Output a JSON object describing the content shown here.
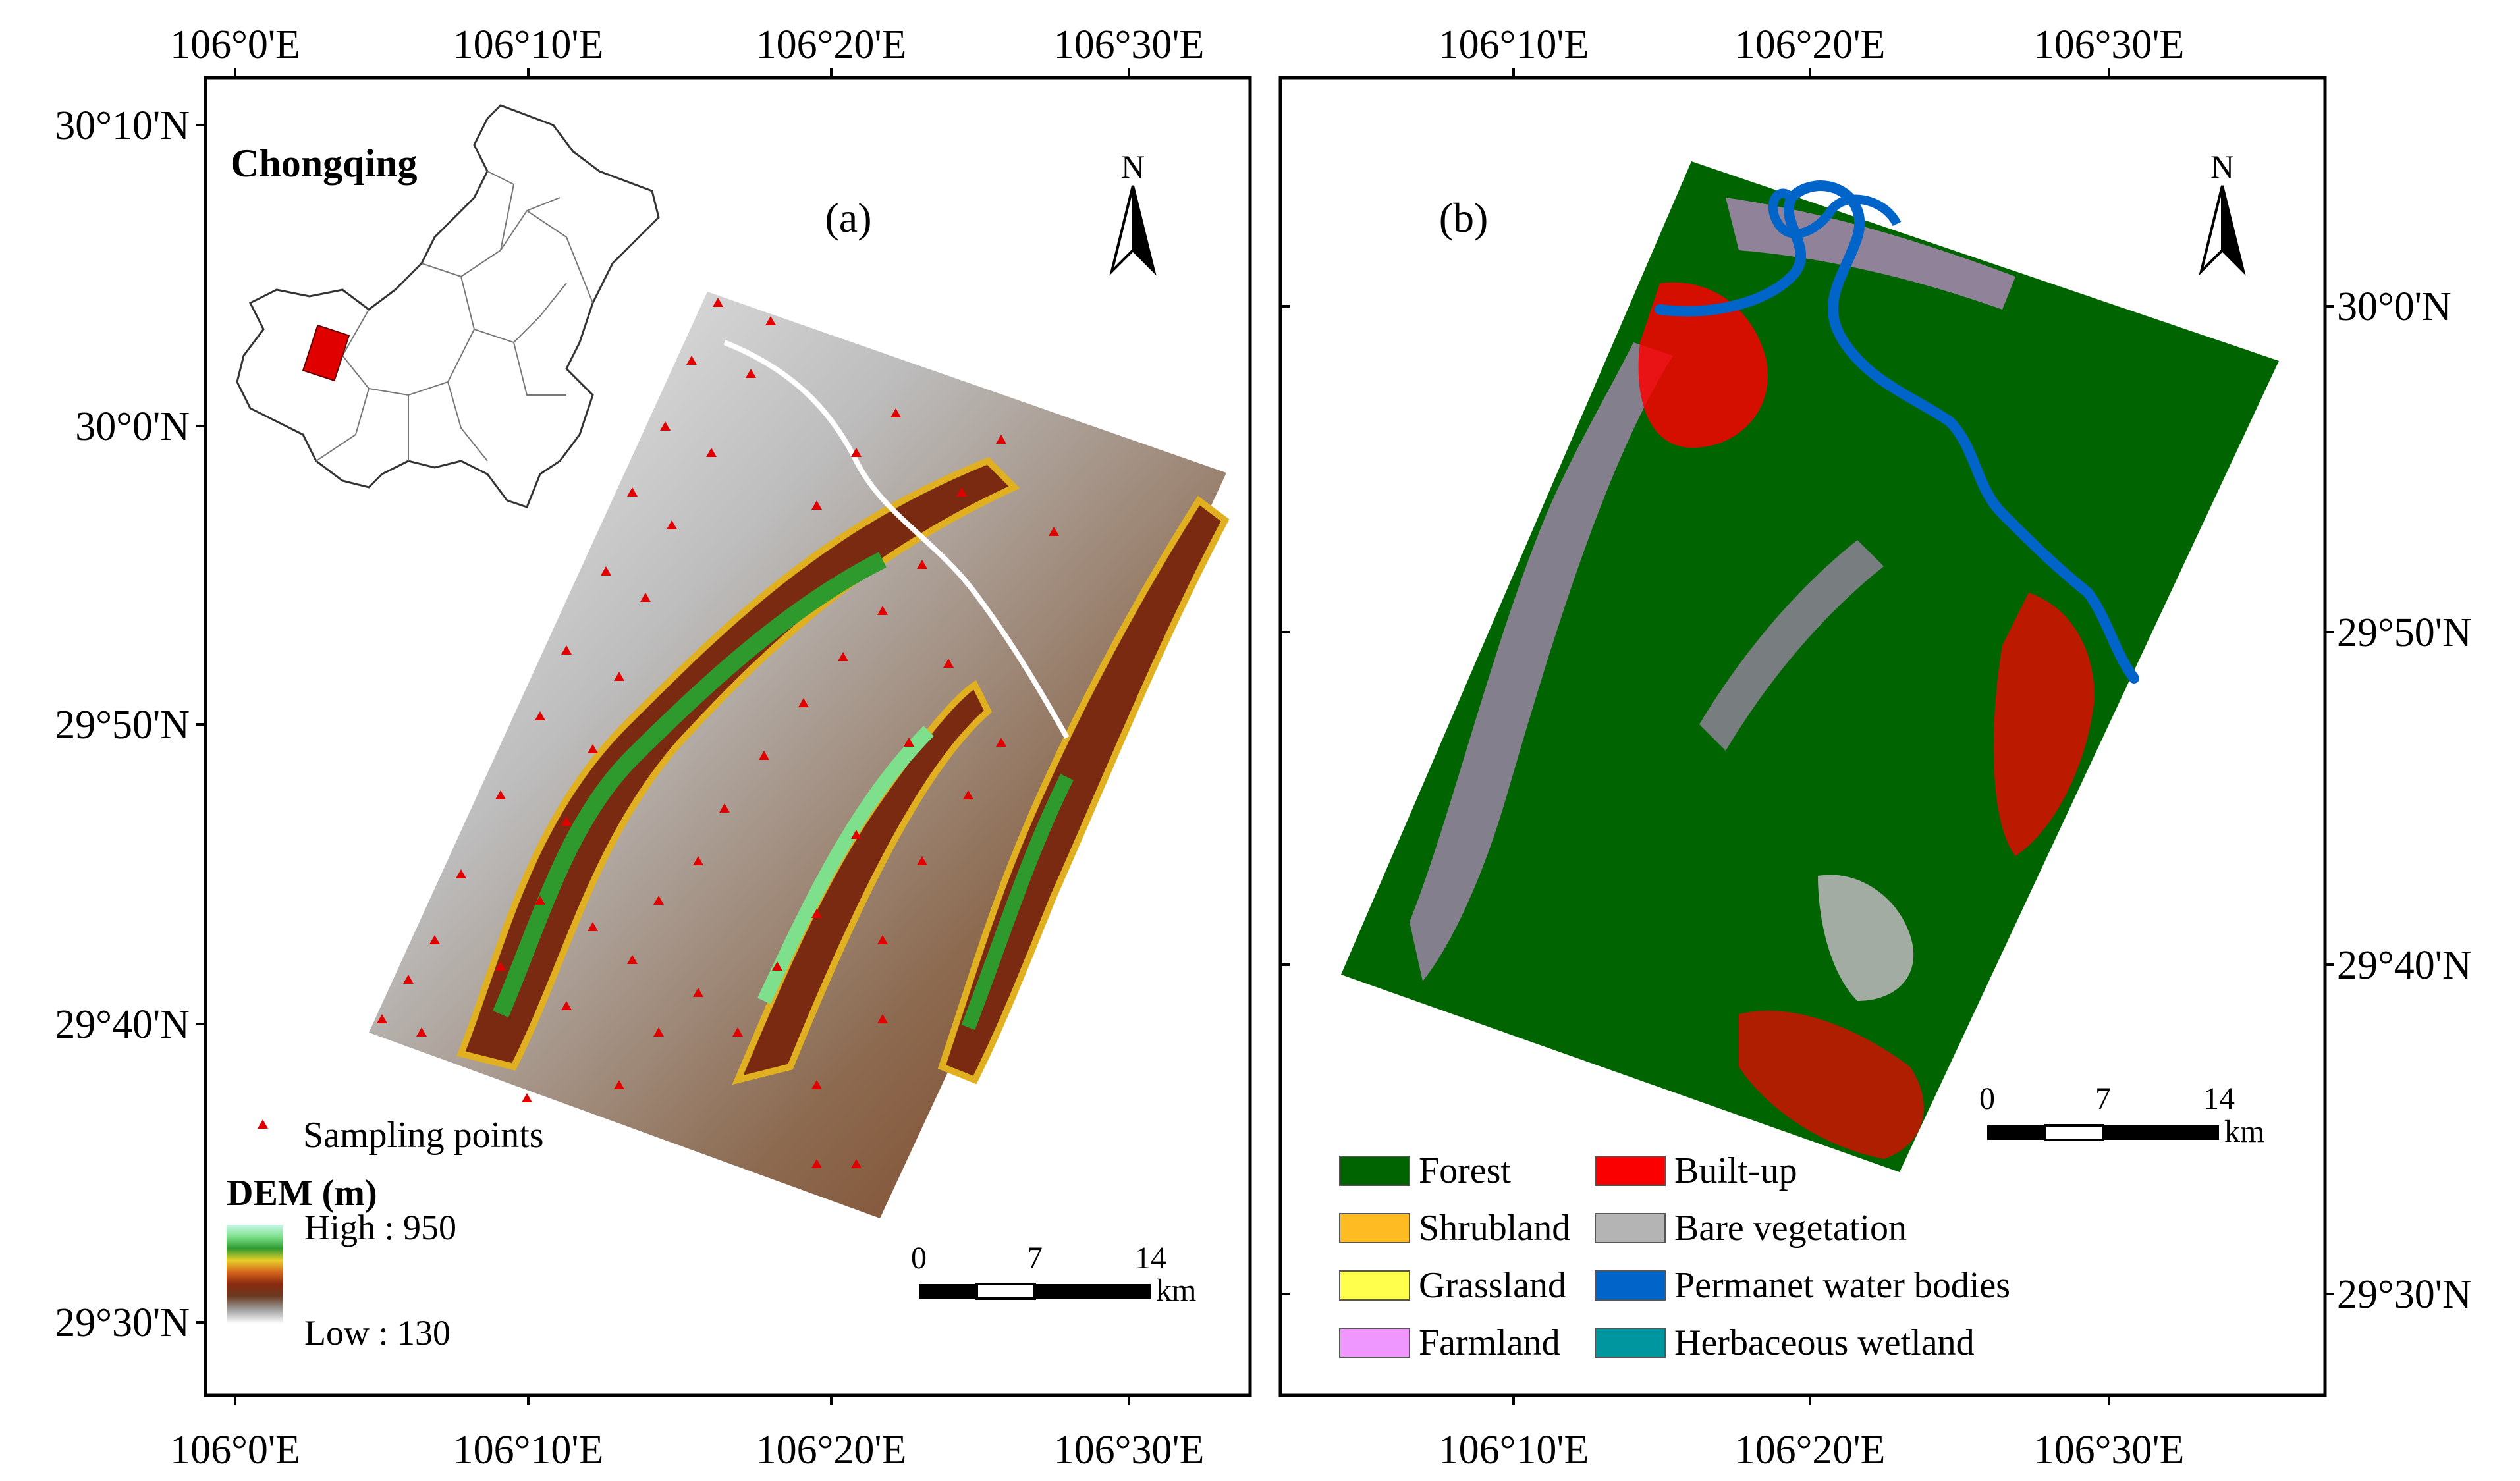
{
  "panel_a": {
    "label": "(a)",
    "top_lon_labels": [
      "106°0'E",
      "106°10'E",
      "106°20'E",
      "106°30'E"
    ],
    "bottom_lon_labels": [
      "106°0'E",
      "106°10'E",
      "106°20'E",
      "106°30'E"
    ],
    "left_lat_labels": [
      "30°10'N",
      "30°0'N",
      "29°50'N",
      "29°40'N",
      "29°30'N"
    ],
    "inset_title": "Chongqing",
    "north_label": "N",
    "sampling_label": "Sampling points",
    "dem_title": "DEM (m)",
    "dem_high": "High : 950",
    "dem_low": "Low : 130",
    "dem_high_value": 950,
    "dem_low_value": 130,
    "scale_ticks": [
      "0",
      "7",
      "14"
    ],
    "scale_unit": "km"
  },
  "panel_b": {
    "label": "(b)",
    "top_lon_labels": [
      "106°10'E",
      "106°20'E",
      "106°30'E"
    ],
    "bottom_lon_labels": [
      "106°10'E",
      "106°20'E",
      "106°30'E"
    ],
    "right_lat_labels": [
      "30°0'N",
      "29°50'N",
      "29°40'N",
      "29°30'N"
    ],
    "north_label": "N",
    "scale_ticks": [
      "0",
      "7",
      "14"
    ],
    "scale_unit": "km",
    "legend": [
      {
        "label": "Forest",
        "color": "#006400"
      },
      {
        "label": "Built-up",
        "color": "#fa0000"
      },
      {
        "label": "Shrubland",
        "color": "#ffbb22"
      },
      {
        "label": "Bare vegetation",
        "color": "#b4b4b4"
      },
      {
        "label": "Grassland",
        "color": "#ffff4c"
      },
      {
        "label": "Permanet water bodies",
        "color": "#0064c8"
      },
      {
        "label": "Farmland",
        "color": "#f096ff"
      },
      {
        "label": "Herbaceous wetland",
        "color": "#0096a0"
      }
    ]
  }
}
